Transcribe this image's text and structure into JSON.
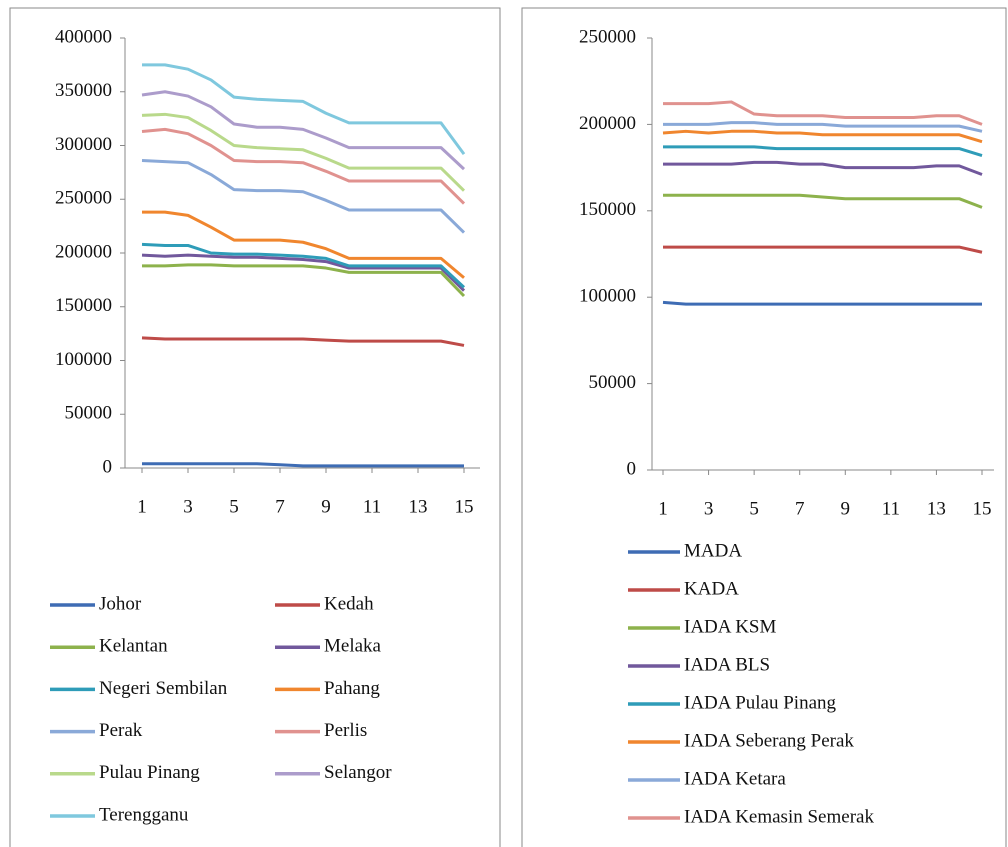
{
  "chart_data": [
    {
      "type": "line",
      "x": [
        1,
        2,
        3,
        4,
        5,
        6,
        7,
        8,
        9,
        10,
        11,
        12,
        13,
        14,
        15
      ],
      "xlim": [
        1,
        15
      ],
      "xticks": [
        1,
        3,
        5,
        7,
        9,
        11,
        13,
        15
      ],
      "ylim": [
        0,
        400000
      ],
      "yticks": [
        0,
        50000,
        100000,
        150000,
        200000,
        250000,
        300000,
        350000,
        400000
      ],
      "legend": "bottom",
      "legend_columns": 2,
      "series": [
        {
          "name": "Johor",
          "color": "#3e6cb4",
          "values": [
            4000,
            4000,
            4000,
            4000,
            4000,
            4000,
            3000,
            2000,
            2000,
            2000,
            2000,
            2000,
            2000,
            2000,
            2000
          ]
        },
        {
          "name": "Kedah",
          "color": "#be4b48",
          "values": [
            121000,
            120000,
            120000,
            120000,
            120000,
            120000,
            120000,
            120000,
            119000,
            118000,
            118000,
            118000,
            118000,
            118000,
            114000
          ]
        },
        {
          "name": "Kelantan",
          "color": "#8db24c",
          "values": [
            188000,
            188000,
            189000,
            189000,
            188000,
            188000,
            188000,
            188000,
            186000,
            182000,
            182000,
            182000,
            182000,
            182000,
            160000
          ]
        },
        {
          "name": "Melaka",
          "color": "#71589c",
          "values": [
            198000,
            197000,
            198000,
            197000,
            196000,
            196000,
            195000,
            194000,
            192000,
            186000,
            186000,
            186000,
            186000,
            186000,
            165000
          ]
        },
        {
          "name": "Negeri Sembilan",
          "color": "#2e9cb8",
          "values": [
            208000,
            207000,
            207000,
            200000,
            199000,
            199000,
            198000,
            197000,
            195000,
            188000,
            188000,
            188000,
            188000,
            188000,
            168000
          ]
        },
        {
          "name": "Pahang",
          "color": "#f0862e",
          "values": [
            238000,
            238000,
            235000,
            224000,
            212000,
            212000,
            212000,
            210000,
            204000,
            195000,
            195000,
            195000,
            195000,
            195000,
            177000
          ]
        },
        {
          "name": "Perak",
          "color": "#8aa9d8",
          "values": [
            286000,
            285000,
            284000,
            273000,
            259000,
            258000,
            258000,
            257000,
            249000,
            240000,
            240000,
            240000,
            240000,
            240000,
            219000
          ]
        },
        {
          "name": "Perlis",
          "color": "#e0928f",
          "values": [
            313000,
            315000,
            311000,
            300000,
            286000,
            285000,
            285000,
            284000,
            276000,
            267000,
            267000,
            267000,
            267000,
            267000,
            246000
          ]
        },
        {
          "name": "Pulau Pinang",
          "color": "#b9d98b",
          "values": [
            328000,
            329000,
            326000,
            314000,
            300000,
            298000,
            297000,
            296000,
            288000,
            279000,
            279000,
            279000,
            279000,
            279000,
            258000
          ]
        },
        {
          "name": "Selangor",
          "color": "#ac9ccb",
          "values": [
            347000,
            350000,
            346000,
            336000,
            320000,
            317000,
            317000,
            315000,
            307000,
            298000,
            298000,
            298000,
            298000,
            298000,
            278000
          ]
        },
        {
          "name": "Terengganu",
          "color": "#7fc8de",
          "values": [
            375000,
            375000,
            371000,
            361000,
            345000,
            343000,
            342000,
            341000,
            330000,
            321000,
            321000,
            321000,
            321000,
            321000,
            292000
          ]
        }
      ]
    },
    {
      "type": "line",
      "x": [
        1,
        2,
        3,
        4,
        5,
        6,
        7,
        8,
        9,
        10,
        11,
        12,
        13,
        14,
        15
      ],
      "xlim": [
        1,
        15
      ],
      "xticks": [
        1,
        3,
        5,
        7,
        9,
        11,
        13,
        15
      ],
      "ylim": [
        0,
        250000
      ],
      "yticks": [
        0,
        50000,
        100000,
        150000,
        200000,
        250000
      ],
      "legend": "bottom",
      "legend_columns": 1,
      "series": [
        {
          "name": "MADA",
          "color": "#3e6cb4",
          "values": [
            97000,
            96000,
            96000,
            96000,
            96000,
            96000,
            96000,
            96000,
            96000,
            96000,
            96000,
            96000,
            96000,
            96000,
            96000
          ]
        },
        {
          "name": "KADA",
          "color": "#be4b48",
          "values": [
            129000,
            129000,
            129000,
            129000,
            129000,
            129000,
            129000,
            129000,
            129000,
            129000,
            129000,
            129000,
            129000,
            129000,
            126000
          ]
        },
        {
          "name": "IADA KSM",
          "color": "#8db24c",
          "values": [
            159000,
            159000,
            159000,
            159000,
            159000,
            159000,
            159000,
            158000,
            157000,
            157000,
            157000,
            157000,
            157000,
            157000,
            152000
          ]
        },
        {
          "name": "IADA BLS",
          "color": "#71589c",
          "values": [
            177000,
            177000,
            177000,
            177000,
            178000,
            178000,
            177000,
            177000,
            175000,
            175000,
            175000,
            175000,
            176000,
            176000,
            171000
          ]
        },
        {
          "name": "IADA Pulau Pinang",
          "color": "#2e9cb8",
          "values": [
            187000,
            187000,
            187000,
            187000,
            187000,
            186000,
            186000,
            186000,
            186000,
            186000,
            186000,
            186000,
            186000,
            186000,
            182000
          ]
        },
        {
          "name": "IADA Seberang Perak",
          "color": "#f0862e",
          "values": [
            195000,
            196000,
            195000,
            196000,
            196000,
            195000,
            195000,
            194000,
            194000,
            194000,
            194000,
            194000,
            194000,
            194000,
            190000
          ]
        },
        {
          "name": "IADA Ketara",
          "color": "#8aa9d8",
          "values": [
            200000,
            200000,
            200000,
            201000,
            201000,
            200000,
            200000,
            200000,
            199000,
            199000,
            199000,
            199000,
            199000,
            199000,
            196000
          ]
        },
        {
          "name": "IADA Kemasin Semerak",
          "color": "#e0928f",
          "values": [
            212000,
            212000,
            212000,
            213000,
            206000,
            205000,
            205000,
            205000,
            204000,
            204000,
            204000,
            204000,
            205000,
            205000,
            200000
          ]
        }
      ]
    }
  ]
}
